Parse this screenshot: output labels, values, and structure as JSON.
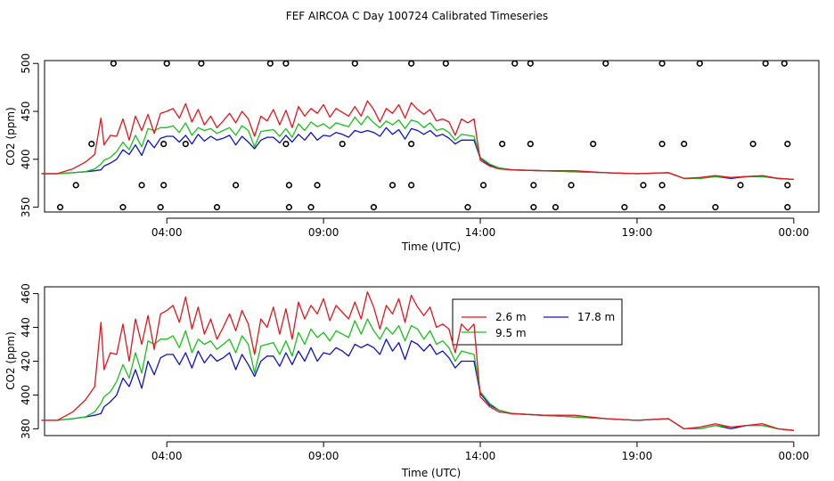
{
  "figure_title": "FEF AIRCOA C  Day 100724  Calibrated Timeseries",
  "chart_data": [
    {
      "type": "line",
      "title": "",
      "xlabel": "Time (UTC)",
      "ylabel": "CO2 (ppm)",
      "x_ticks": [
        4,
        9,
        14,
        19,
        24
      ],
      "x_tick_labels": [
        "04:00",
        "09:00",
        "14:00",
        "19:00",
        "00:00"
      ],
      "y_ticks": [
        350,
        400,
        450,
        500
      ],
      "xlim": [
        0.1,
        24.8
      ],
      "ylim": [
        345,
        503
      ],
      "colors": {
        "2.6 m": "#e8131b",
        "9.5 m": "#15c315",
        "17.8 m": "#1010d0"
      },
      "flag_rows": {
        "500": [
          2.3,
          4.0,
          5.1,
          7.3,
          7.8,
          10.0,
          11.8,
          12.9,
          15.1,
          15.6,
          18.0,
          19.8,
          21.0,
          23.1,
          23.7
        ],
        "416": [
          1.6,
          3.9,
          4.6,
          7.8,
          9.6,
          11.8,
          14.7,
          15.6,
          17.6,
          19.8,
          20.5,
          22.7,
          23.8
        ],
        "373": [
          1.1,
          3.2,
          3.9,
          6.2,
          7.9,
          8.8,
          11.2,
          11.8,
          14.1,
          15.7,
          16.9,
          19.2,
          19.8,
          22.3,
          23.8
        ],
        "350": [
          0.6,
          2.6,
          3.8,
          5.6,
          7.9,
          8.6,
          10.6,
          13.6,
          15.7,
          16.4,
          18.6,
          19.8,
          21.5,
          23.8
        ]
      },
      "x": [
        0.0,
        0.5,
        1.0,
        1.4,
        1.7,
        1.9,
        2.0,
        2.2,
        2.4,
        2.6,
        2.8,
        3.0,
        3.2,
        3.4,
        3.6,
        3.8,
        4.0,
        4.2,
        4.4,
        4.6,
        4.8,
        5.0,
        5.2,
        5.4,
        5.6,
        5.8,
        6.0,
        6.2,
        6.4,
        6.6,
        6.8,
        7.0,
        7.2,
        7.4,
        7.6,
        7.8,
        8.0,
        8.2,
        8.4,
        8.6,
        8.8,
        9.0,
        9.2,
        9.4,
        9.6,
        9.8,
        10.0,
        10.2,
        10.4,
        10.6,
        10.8,
        11.0,
        11.2,
        11.4,
        11.6,
        11.8,
        12.0,
        12.2,
        12.4,
        12.6,
        12.8,
        13.0,
        13.2,
        13.4,
        13.6,
        13.8,
        14.0,
        14.3,
        14.6,
        15.0,
        16.0,
        17.0,
        18.0,
        19.0,
        20.0,
        20.5,
        21.0,
        21.5,
        22.0,
        22.5,
        23.0,
        23.5,
        24.0
      ],
      "series": [
        {
          "name": "2.6 m",
          "values": [
            385,
            385,
            390,
            397,
            405,
            443,
            415,
            425,
            424,
            442,
            420,
            445,
            430,
            447,
            427,
            448,
            450,
            453,
            443,
            458,
            439,
            452,
            436,
            445,
            433,
            440,
            448,
            438,
            450,
            442,
            424,
            445,
            440,
            452,
            436,
            451,
            433,
            455,
            445,
            453,
            448,
            457,
            444,
            453,
            449,
            445,
            455,
            445,
            461,
            452,
            439,
            453,
            448,
            457,
            443,
            459,
            452,
            447,
            452,
            440,
            442,
            439,
            425,
            442,
            438,
            442,
            399,
            393,
            390,
            389,
            388,
            388,
            386,
            385,
            386,
            380,
            381,
            383,
            381,
            382,
            383,
            380,
            379
          ]
        },
        {
          "name": "9.5 m",
          "values": [
            385,
            385,
            386,
            387,
            390,
            395,
            399,
            402,
            408,
            418,
            410,
            425,
            413,
            432,
            430,
            433,
            433,
            435,
            428,
            438,
            425,
            433,
            430,
            432,
            427,
            430,
            433,
            425,
            435,
            430,
            413,
            429,
            430,
            431,
            424,
            432,
            423,
            437,
            430,
            439,
            434,
            437,
            432,
            438,
            436,
            434,
            444,
            436,
            445,
            438,
            433,
            440,
            436,
            441,
            432,
            441,
            439,
            433,
            438,
            430,
            432,
            428,
            420,
            426,
            425,
            424,
            402,
            395,
            391,
            389,
            388,
            387,
            386,
            385,
            386,
            380,
            380,
            382,
            381,
            382,
            382,
            380,
            379
          ]
        },
        {
          "name": "17.8 m",
          "values": [
            385,
            385,
            386,
            387,
            388,
            389,
            393,
            396,
            400,
            410,
            405,
            415,
            404,
            420,
            412,
            422,
            424,
            424,
            418,
            425,
            416,
            426,
            419,
            424,
            420,
            422,
            425,
            415,
            424,
            418,
            411,
            420,
            423,
            423,
            417,
            425,
            418,
            426,
            420,
            428,
            420,
            425,
            424,
            428,
            426,
            423,
            430,
            428,
            430,
            428,
            424,
            433,
            426,
            431,
            421,
            432,
            430,
            426,
            430,
            424,
            426,
            422,
            416,
            420,
            420,
            420,
            401,
            394,
            391,
            389,
            388,
            387,
            386,
            385,
            386,
            380,
            380,
            382,
            380,
            382,
            382,
            380,
            379
          ]
        }
      ]
    },
    {
      "type": "line",
      "title": "",
      "xlabel": "Time (UTC)",
      "ylabel": "CO2 (ppm)",
      "x_ticks": [
        4,
        9,
        14,
        19,
        24
      ],
      "x_tick_labels": [
        "04:00",
        "09:00",
        "14:00",
        "19:00",
        "00:00"
      ],
      "y_ticks": [
        380,
        400,
        420,
        440,
        460
      ],
      "xlim": [
        0.1,
        24.8
      ],
      "ylim": [
        376,
        464
      ],
      "legend": {
        "placement": "top-right",
        "entries": [
          "2.6 m",
          "9.5 m",
          "17.8 m"
        ]
      },
      "x": [
        0.0,
        0.5,
        1.0,
        1.4,
        1.7,
        1.9,
        2.0,
        2.2,
        2.4,
        2.6,
        2.8,
        3.0,
        3.2,
        3.4,
        3.6,
        3.8,
        4.0,
        4.2,
        4.4,
        4.6,
        4.8,
        5.0,
        5.2,
        5.4,
        5.6,
        5.8,
        6.0,
        6.2,
        6.4,
        6.6,
        6.8,
        7.0,
        7.2,
        7.4,
        7.6,
        7.8,
        8.0,
        8.2,
        8.4,
        8.6,
        8.8,
        9.0,
        9.2,
        9.4,
        9.6,
        9.8,
        10.0,
        10.2,
        10.4,
        10.6,
        10.8,
        11.0,
        11.2,
        11.4,
        11.6,
        11.8,
        12.0,
        12.2,
        12.4,
        12.6,
        12.8,
        13.0,
        13.2,
        13.4,
        13.6,
        13.8,
        14.0,
        14.3,
        14.6,
        15.0,
        16.0,
        17.0,
        18.0,
        19.0,
        20.0,
        20.5,
        21.0,
        21.5,
        22.0,
        22.5,
        23.0,
        23.5,
        24.0
      ],
      "series": [
        {
          "name": "2.6 m",
          "values": [
            385,
            385,
            390,
            397,
            405,
            443,
            415,
            425,
            424,
            442,
            420,
            445,
            430,
            447,
            427,
            448,
            450,
            453,
            443,
            458,
            439,
            452,
            436,
            445,
            433,
            440,
            448,
            438,
            450,
            442,
            424,
            445,
            440,
            452,
            436,
            451,
            433,
            455,
            445,
            453,
            448,
            457,
            444,
            453,
            449,
            445,
            455,
            445,
            461,
            452,
            439,
            453,
            448,
            457,
            443,
            459,
            452,
            447,
            452,
            440,
            442,
            439,
            425,
            442,
            438,
            442,
            399,
            393,
            390,
            389,
            388,
            388,
            386,
            385,
            386,
            380,
            381,
            383,
            381,
            382,
            383,
            380,
            379
          ]
        },
        {
          "name": "9.5 m",
          "values": [
            385,
            385,
            386,
            387,
            390,
            395,
            399,
            402,
            408,
            418,
            410,
            425,
            413,
            432,
            430,
            433,
            433,
            435,
            428,
            438,
            425,
            433,
            430,
            432,
            427,
            430,
            433,
            425,
            435,
            430,
            413,
            429,
            430,
            431,
            424,
            432,
            423,
            437,
            430,
            439,
            434,
            437,
            432,
            438,
            436,
            434,
            444,
            436,
            445,
            438,
            433,
            440,
            436,
            441,
            432,
            441,
            439,
            433,
            438,
            430,
            432,
            428,
            420,
            426,
            425,
            424,
            402,
            395,
            391,
            389,
            388,
            387,
            386,
            385,
            386,
            380,
            380,
            382,
            381,
            382,
            382,
            380,
            379
          ]
        },
        {
          "name": "17.8 m",
          "values": [
            385,
            385,
            386,
            387,
            388,
            389,
            393,
            396,
            400,
            410,
            405,
            415,
            404,
            420,
            412,
            422,
            424,
            424,
            418,
            425,
            416,
            426,
            419,
            424,
            420,
            422,
            425,
            415,
            424,
            418,
            411,
            420,
            423,
            423,
            417,
            425,
            418,
            426,
            420,
            428,
            420,
            425,
            424,
            428,
            426,
            423,
            430,
            428,
            430,
            428,
            424,
            433,
            426,
            431,
            421,
            432,
            430,
            426,
            430,
            424,
            426,
            422,
            416,
            420,
            420,
            420,
            401,
            394,
            391,
            389,
            388,
            387,
            386,
            385,
            386,
            380,
            380,
            382,
            380,
            382,
            382,
            380,
            379
          ]
        }
      ]
    }
  ]
}
